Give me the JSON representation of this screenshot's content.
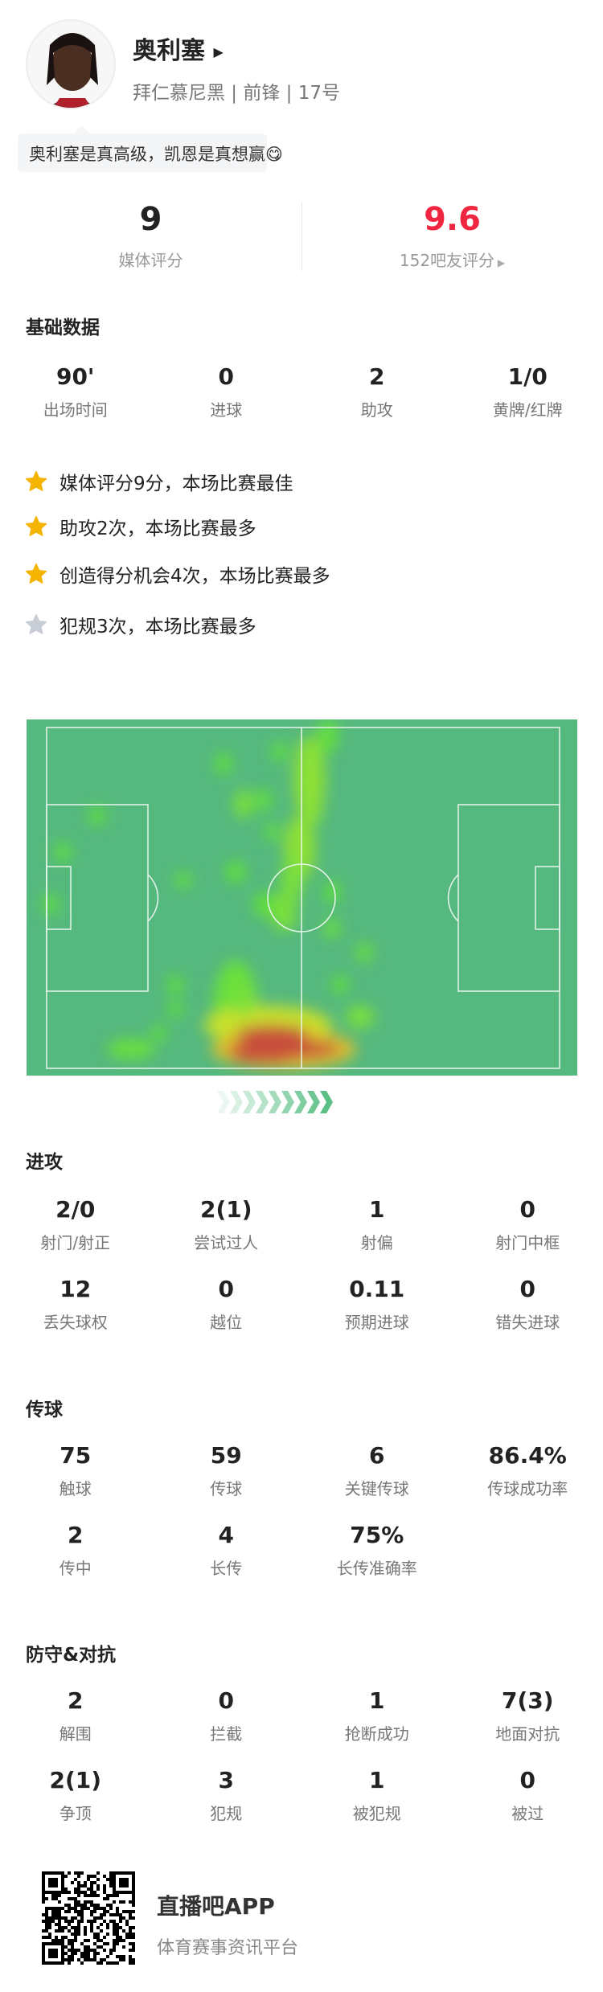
{
  "player": {
    "name": "奥利塞",
    "team": "拜仁慕尼黑",
    "position": "前锋",
    "number": "17号",
    "subtitle": "拜仁慕尼黑 | 前锋 | 17号",
    "comment": "奥利塞是真高级，凯恩是真想赢😋"
  },
  "ratings": {
    "media_score": "9",
    "media_label": "媒体评分",
    "fan_score": "9.6",
    "fan_label": "152吧友评分",
    "fan_color": "#f0253f"
  },
  "basic": {
    "title": "基础数据",
    "stats": [
      {
        "value": "90'",
        "label": "出场时间"
      },
      {
        "value": "0",
        "label": "进球"
      },
      {
        "value": "2",
        "label": "助攻"
      },
      {
        "value": "1/0",
        "label": "黄牌/红牌"
      }
    ]
  },
  "highlights": [
    {
      "icon": "star-gold",
      "text": "媒体评分9分，本场比赛最佳"
    },
    {
      "icon": "star-gold",
      "text": "助攻2次，本场比赛最多"
    },
    {
      "icon": "star-gold",
      "text": "创造得分机会4次，本场比赛最多"
    },
    {
      "icon": "star-gray",
      "text": "犯规3次，本场比赛最多"
    }
  ],
  "attack": {
    "title": "进攻",
    "stats": [
      {
        "value": "2/0",
        "label": "射门/射正"
      },
      {
        "value": "2(1)",
        "label": "尝试过人"
      },
      {
        "value": "1",
        "label": "射偏"
      },
      {
        "value": "0",
        "label": "射门中框"
      },
      {
        "value": "12",
        "label": "丢失球权"
      },
      {
        "value": "0",
        "label": "越位"
      },
      {
        "value": "0.11",
        "label": "预期进球"
      },
      {
        "value": "0",
        "label": "错失进球"
      }
    ]
  },
  "passing": {
    "title": "传球",
    "stats": [
      {
        "value": "75",
        "label": "触球"
      },
      {
        "value": "59",
        "label": "传球"
      },
      {
        "value": "6",
        "label": "关键传球"
      },
      {
        "value": "86.4%",
        "label": "传球成功率"
      },
      {
        "value": "2",
        "label": "传中"
      },
      {
        "value": "4",
        "label": "长传"
      },
      {
        "value": "75%",
        "label": "长传准确率"
      }
    ]
  },
  "defense": {
    "title": "防守&对抗",
    "stats": [
      {
        "value": "2",
        "label": "解围"
      },
      {
        "value": "0",
        "label": "拦截"
      },
      {
        "value": "1",
        "label": "抢断成功"
      },
      {
        "value": "7(3)",
        "label": "地面对抗"
      },
      {
        "value": "2(1)",
        "label": "争顶"
      },
      {
        "value": "3",
        "label": "犯规"
      },
      {
        "value": "1",
        "label": "被犯规"
      },
      {
        "value": "0",
        "label": "被过"
      }
    ]
  },
  "footer": {
    "app_name": "直播吧APP",
    "tagline": "体育赛事资讯平台"
  },
  "colors": {
    "pitch": "#55b87e",
    "star_gold": "#f5b400",
    "star_gray": "#c8ccd4",
    "arrow": "#5cbf86"
  }
}
